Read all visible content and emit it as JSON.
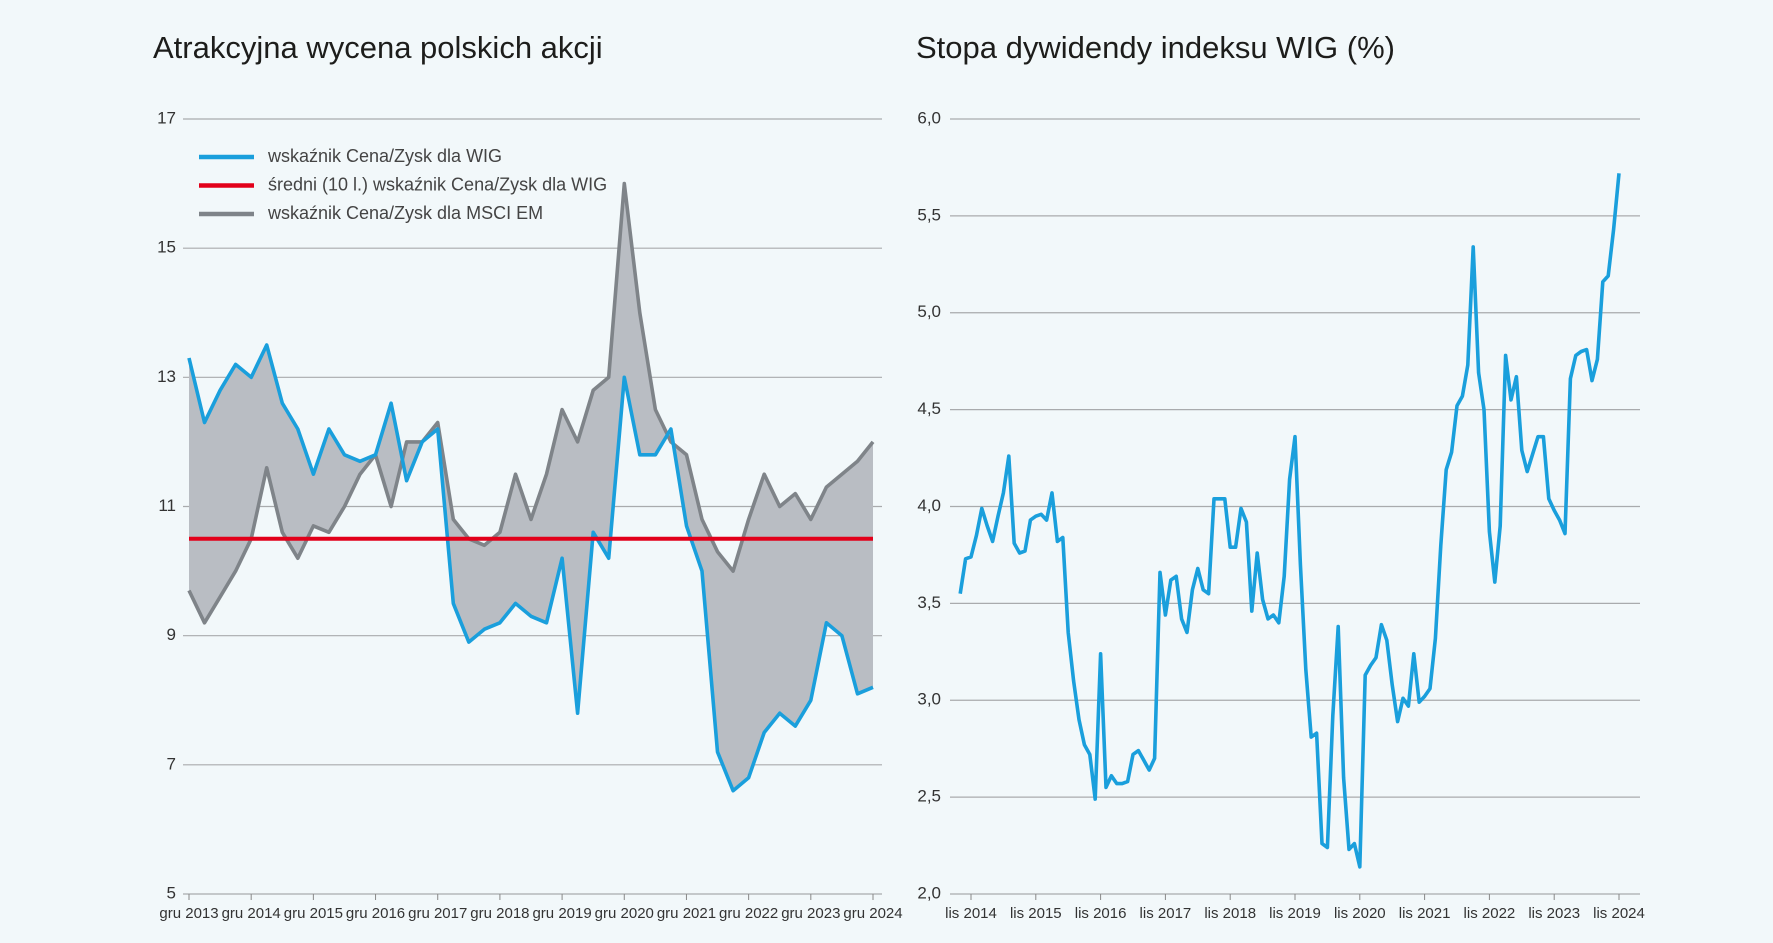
{
  "chart_data": [
    {
      "type": "line",
      "title": "Atrakcyjna wycena polskich akcji",
      "categories": [
        "gru 2013",
        null,
        null,
        null,
        "gru 2014",
        null,
        null,
        null,
        "gru 2015",
        null,
        null,
        null,
        "gru 2016",
        null,
        null,
        null,
        "gru 2017",
        null,
        null,
        null,
        "gru 2018",
        null,
        null,
        null,
        "gru 2019",
        null,
        null,
        null,
        "gru 2020",
        null,
        null,
        null,
        "gru 2021",
        null,
        null,
        null,
        "gru 2022",
        null,
        null,
        null,
        "gru 2023",
        null,
        null,
        null,
        "gru 2024"
      ],
      "series": [
        {
          "name": "wskaźnik Cena/Zysk dla WIG",
          "color": "#1a9fdc",
          "values": [
            13.3,
            12.3,
            12.8,
            13.2,
            13.0,
            13.5,
            12.6,
            12.2,
            11.5,
            12.2,
            11.8,
            11.7,
            11.8,
            12.6,
            11.4,
            12.0,
            12.2,
            9.5,
            8.9,
            9.1,
            9.2,
            9.5,
            9.3,
            9.2,
            10.2,
            7.8,
            10.6,
            10.2,
            13.0,
            11.8,
            11.8,
            12.2,
            10.7,
            10.0,
            7.2,
            6.6,
            6.8,
            7.5,
            7.8,
            7.6,
            8.0,
            9.2,
            9.0,
            8.1,
            8.2
          ]
        },
        {
          "name": "średni (10 l.) wskaźnik Cena/Zysk dla WIG",
          "color": "#e2001a",
          "values": [
            10.5,
            10.5,
            10.5,
            10.5,
            10.5,
            10.5,
            10.5,
            10.5,
            10.5,
            10.5,
            10.5,
            10.5,
            10.5,
            10.5,
            10.5,
            10.5,
            10.5,
            10.5,
            10.5,
            10.5,
            10.5,
            10.5,
            10.5,
            10.5,
            10.5,
            10.5,
            10.5,
            10.5,
            10.5,
            10.5,
            10.5,
            10.5,
            10.5,
            10.5,
            10.5,
            10.5,
            10.5,
            10.5,
            10.5,
            10.5,
            10.5,
            10.5,
            10.5,
            10.5,
            10.5
          ]
        },
        {
          "name": "wskaźnik Cena/Zysk dla MSCI EM",
          "color": "#7f8489",
          "values": [
            9.7,
            9.2,
            9.6,
            10.0,
            10.5,
            11.6,
            10.6,
            10.2,
            10.7,
            10.6,
            11.0,
            11.5,
            11.8,
            11.0,
            12.0,
            12.0,
            12.3,
            10.8,
            10.5,
            10.4,
            10.6,
            11.5,
            10.8,
            11.5,
            12.5,
            12.0,
            12.8,
            13.0,
            16.0,
            14.0,
            12.5,
            12.0,
            11.8,
            10.8,
            10.3,
            10.0,
            10.8,
            11.5,
            11.0,
            11.2,
            10.8,
            11.3,
            11.5,
            11.7,
            12.0
          ]
        }
      ],
      "fill_color": "#b9bdc3",
      "ylim": [
        5,
        17
      ],
      "yticks": [
        5,
        7,
        9,
        11,
        13,
        15,
        17
      ],
      "grid": true,
      "legend": "upper left"
    },
    {
      "type": "line",
      "title": "Stopa dywidendy indeksu WIG (%)",
      "categories": [
        null,
        null,
        "lis 2014",
        null,
        null,
        null,
        null,
        null,
        null,
        null,
        null,
        null,
        null,
        null,
        "lis 2015",
        null,
        null,
        null,
        null,
        null,
        null,
        null,
        null,
        null,
        null,
        null,
        "lis 2016",
        null,
        null,
        null,
        null,
        null,
        null,
        null,
        null,
        null,
        null,
        null,
        "lis 2017",
        null,
        null,
        null,
        null,
        null,
        null,
        null,
        null,
        null,
        null,
        null,
        "lis 2018",
        null,
        null,
        null,
        null,
        null,
        null,
        null,
        null,
        null,
        null,
        null,
        "lis 2019",
        null,
        null,
        null,
        null,
        null,
        null,
        null,
        null,
        null,
        null,
        null,
        "lis 2020",
        null,
        null,
        null,
        null,
        null,
        null,
        null,
        null,
        null,
        null,
        null,
        "lis 2021",
        null,
        null,
        null,
        null,
        null,
        null,
        null,
        null,
        null,
        null,
        null,
        "lis 2022",
        null,
        null,
        null,
        null,
        null,
        null,
        null,
        null,
        null,
        null,
        null,
        "lis 2023",
        null,
        null,
        null,
        null,
        null,
        null,
        null,
        null,
        null,
        null,
        null,
        "lis 2024"
      ],
      "series": [
        {
          "name": null,
          "color": "#1a9fdc",
          "values": [
            3.55,
            3.73,
            3.74,
            3.85,
            3.99,
            3.9,
            3.82,
            3.95,
            4.07,
            4.26,
            3.81,
            3.76,
            3.77,
            3.93,
            3.95,
            3.96,
            3.93,
            4.07,
            3.82,
            3.84,
            3.35,
            3.1,
            2.9,
            2.77,
            2.72,
            2.49,
            3.24,
            2.55,
            2.61,
            2.57,
            2.57,
            2.58,
            2.72,
            2.74,
            2.69,
            2.64,
            2.7,
            3.66,
            3.44,
            3.62,
            3.64,
            3.42,
            3.35,
            3.57,
            3.68,
            3.57,
            3.55,
            4.04,
            4.04,
            4.04,
            3.79,
            3.79,
            3.99,
            3.92,
            3.46,
            3.76,
            3.52,
            3.42,
            3.44,
            3.4,
            3.64,
            4.14,
            4.36,
            3.7,
            3.16,
            2.81,
            2.83,
            2.26,
            2.24,
            2.92,
            3.38,
            2.6,
            2.23,
            2.26,
            2.14,
            3.13,
            3.18,
            3.22,
            3.39,
            3.31,
            3.08,
            2.89,
            3.01,
            2.97,
            3.24,
            2.99,
            3.02,
            3.06,
            3.32,
            3.8,
            4.19,
            4.28,
            4.52,
            4.57,
            4.73,
            5.34,
            4.69,
            4.5,
            3.87,
            3.61,
            3.9,
            4.78,
            4.55,
            4.67,
            4.29,
            4.18,
            4.27,
            4.36,
            4.36,
            4.04,
            3.98,
            3.93,
            3.86,
            4.66,
            4.78,
            4.8,
            4.81,
            4.65,
            4.76,
            5.16,
            5.19,
            5.43,
            5.72
          ]
        }
      ],
      "ylim": [
        2,
        6
      ],
      "yticks": [
        {
          "value": 2,
          "label": "2,0"
        },
        {
          "value": 2.5,
          "label": "2,5"
        },
        {
          "value": 3,
          "label": "3,0"
        },
        {
          "value": 3.5,
          "label": "3,5"
        },
        {
          "value": 4,
          "label": "4,0"
        },
        {
          "value": 4.5,
          "label": "4,5"
        },
        {
          "value": 5,
          "label": "5,0"
        },
        {
          "value": 5.5,
          "label": "5,5"
        },
        {
          "value": 6,
          "label": "6,0"
        }
      ],
      "grid": true
    }
  ]
}
